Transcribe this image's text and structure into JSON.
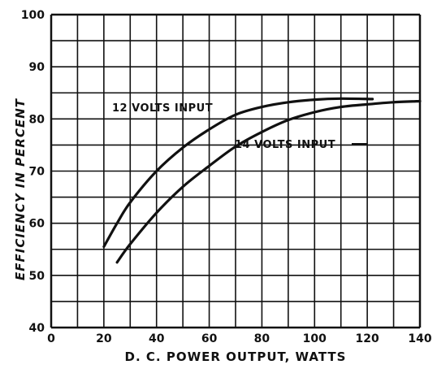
{
  "chart_data": {
    "type": "line",
    "title": "",
    "xlabel": "D. C. POWER OUTPUT, WATTS",
    "ylabel": "EFFICIENCY IN PERCENT",
    "xlim": [
      0,
      140
    ],
    "ylim": [
      40,
      100
    ],
    "xticks": [
      0,
      20,
      40,
      60,
      80,
      100,
      120,
      140
    ],
    "yticks": [
      40,
      50,
      60,
      70,
      80,
      90,
      100
    ],
    "grid": true,
    "series": [
      {
        "name": "12 VOLTS INPUT",
        "x": [
          20,
          25,
          30,
          40,
          50,
          60,
          70,
          80,
          90,
          100,
          110,
          122
        ],
        "y": [
          55.5,
          60,
          64,
          70,
          74.5,
          78,
          80.8,
          82.3,
          83.2,
          83.7,
          83.9,
          83.8
        ]
      },
      {
        "name": "14 VOLTS INPUT",
        "x": [
          25,
          30,
          40,
          50,
          60,
          70,
          80,
          90,
          100,
          110,
          120,
          130,
          140
        ],
        "y": [
          52.5,
          56,
          62,
          67,
          71,
          74.7,
          77.5,
          79.8,
          81.3,
          82.3,
          82.8,
          83.2,
          83.4
        ]
      }
    ]
  }
}
